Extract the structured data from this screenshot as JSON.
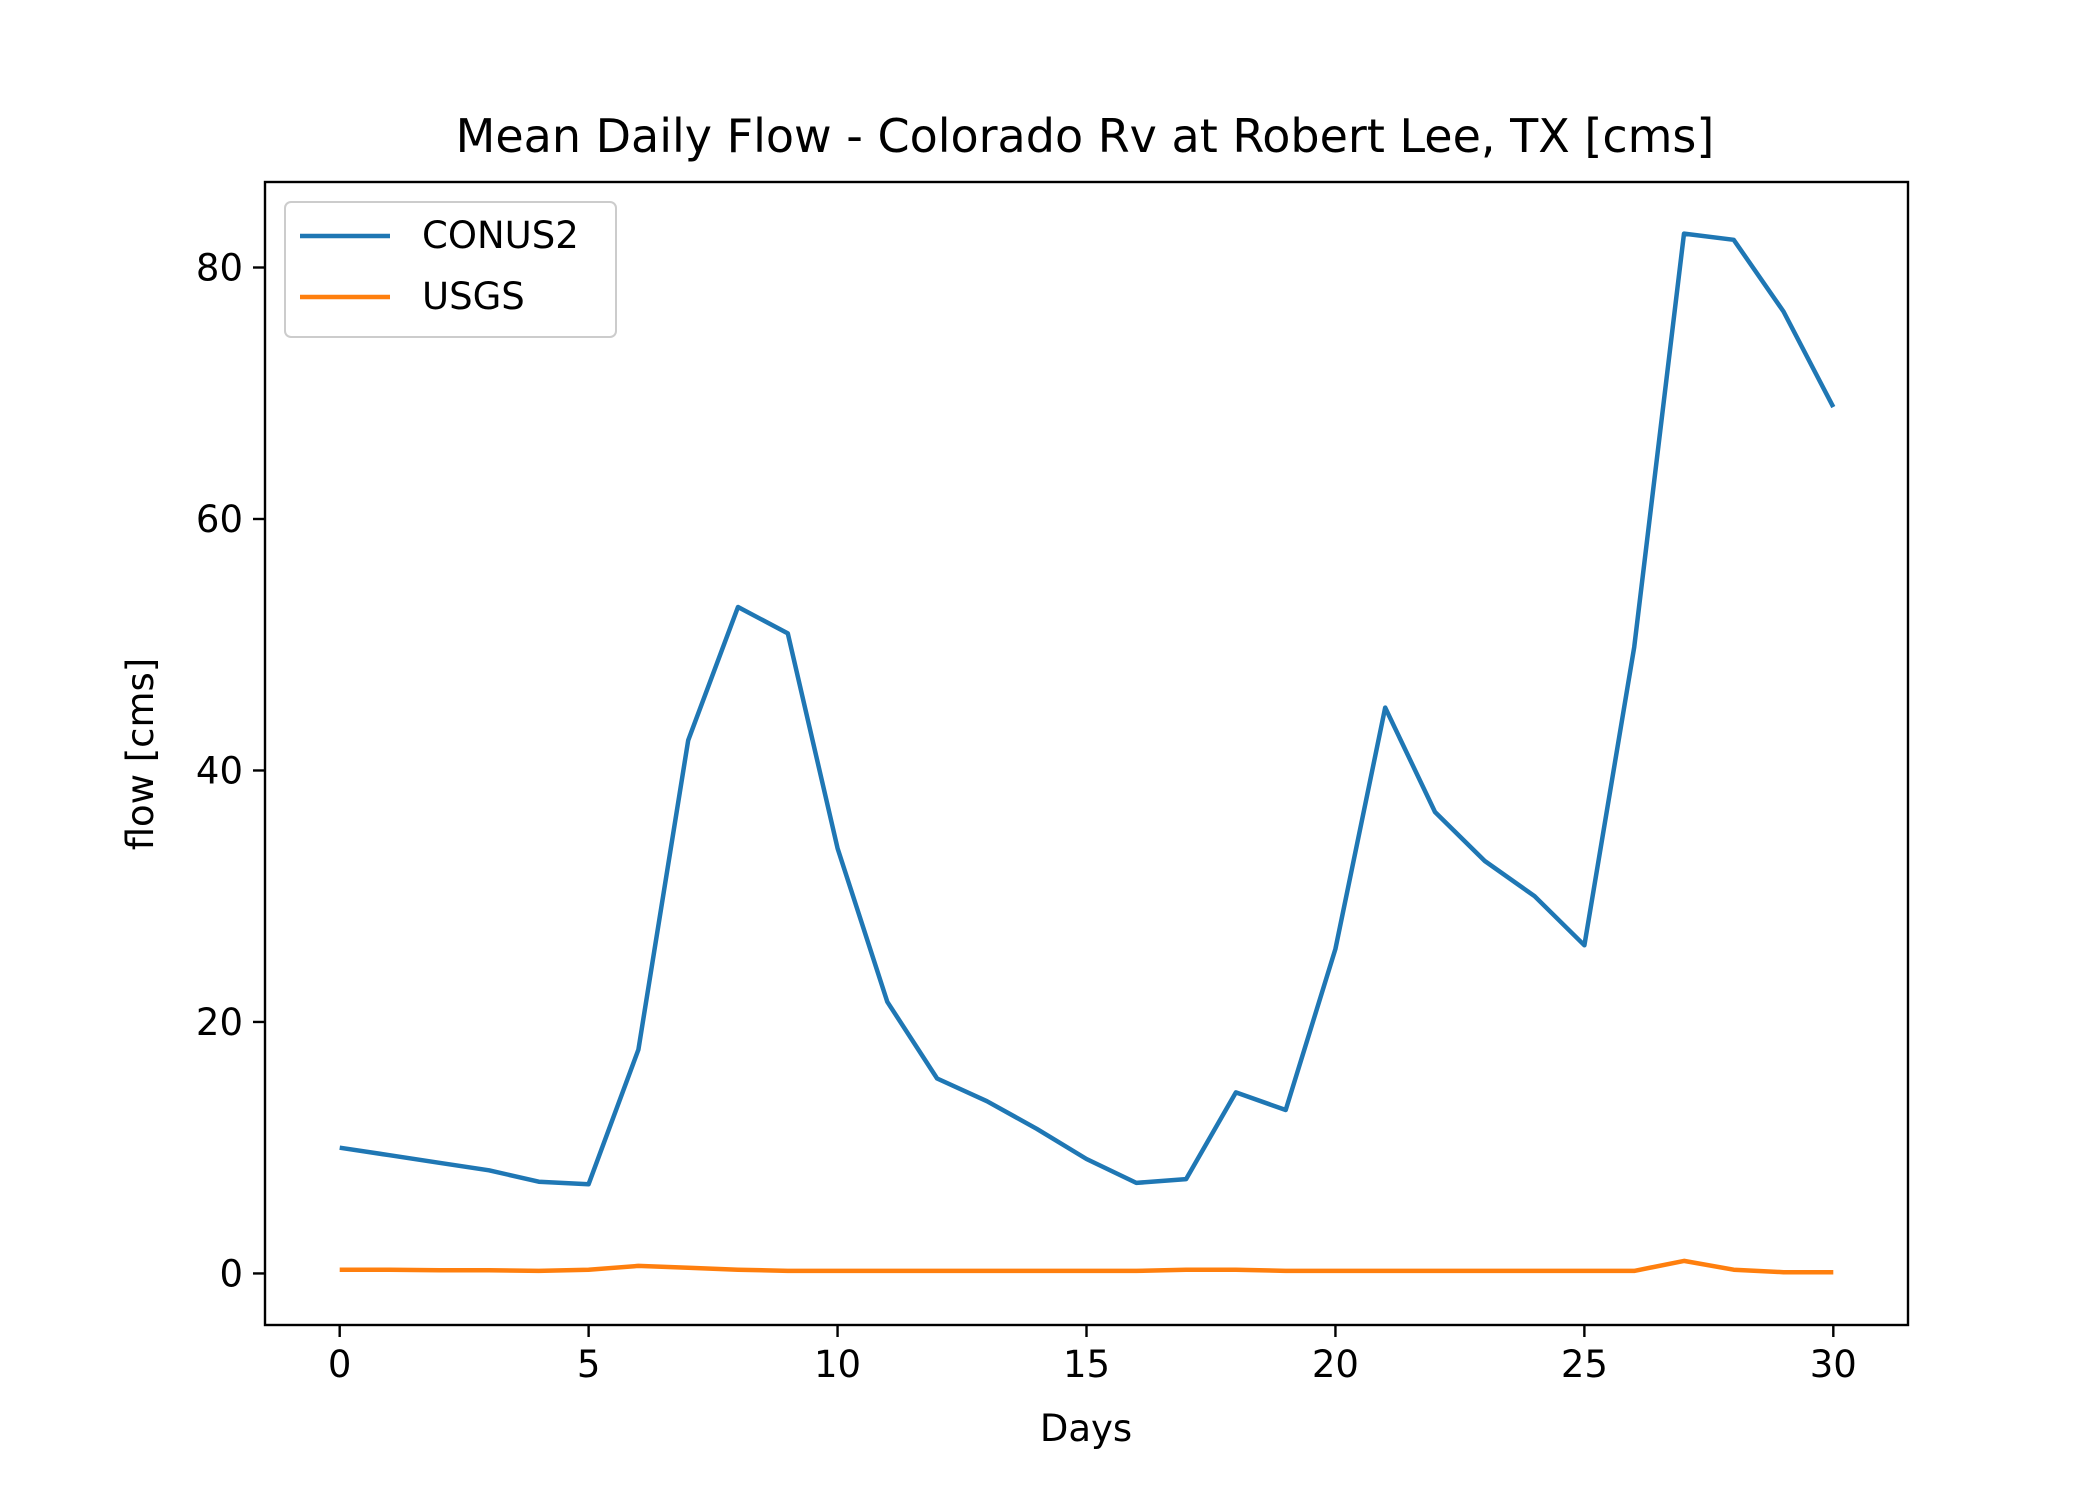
{
  "chart_data": {
    "type": "line",
    "title": "Mean Daily Flow - Colorado Rv at Robert Lee, TX [cms]",
    "xlabel": "Days",
    "ylabel": "flow [cms]",
    "xlim": [
      -1.5,
      31.5
    ],
    "ylim": [
      -4.1,
      86.8
    ],
    "xticks": [
      0,
      5,
      10,
      15,
      20,
      25,
      30
    ],
    "yticks": [
      0,
      20,
      40,
      60,
      80
    ],
    "grid": false,
    "legend_position": "top-left",
    "x": [
      0,
      1,
      2,
      3,
      4,
      5,
      6,
      7,
      8,
      9,
      10,
      11,
      12,
      13,
      14,
      15,
      16,
      17,
      18,
      19,
      20,
      21,
      22,
      23,
      24,
      25,
      26,
      27,
      28,
      29,
      30
    ],
    "series": [
      {
        "name": "CONUS2",
        "color": "#1f77b4",
        "values": [
          10.0,
          9.4,
          8.8,
          8.2,
          7.3,
          7.1,
          17.8,
          42.4,
          53.0,
          50.9,
          33.8,
          21.6,
          15.5,
          13.7,
          11.5,
          9.1,
          7.2,
          7.5,
          14.4,
          13.0,
          25.8,
          45.0,
          36.7,
          32.8,
          30.0,
          26.1,
          49.8,
          82.7,
          82.2,
          76.5,
          68.9
        ]
      },
      {
        "name": "USGS",
        "color": "#ff7f0e",
        "values": [
          0.3,
          0.3,
          0.25,
          0.25,
          0.2,
          0.3,
          0.6,
          0.45,
          0.3,
          0.2,
          0.2,
          0.2,
          0.2,
          0.2,
          0.2,
          0.2,
          0.2,
          0.3,
          0.3,
          0.2,
          0.2,
          0.2,
          0.2,
          0.2,
          0.2,
          0.2,
          0.2,
          1.0,
          0.3,
          0.1,
          0.1
        ]
      }
    ]
  }
}
